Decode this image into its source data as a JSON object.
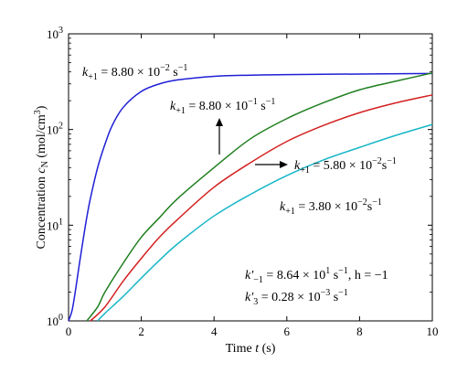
{
  "chart_data": {
    "type": "line",
    "title": "",
    "xlabel": "Time t (s)",
    "ylabel": "Concentration c_N (mol/cm^3)",
    "x_scale": "linear",
    "y_scale": "log",
    "xlim": [
      0,
      10
    ],
    "ylim": [
      1,
      1000
    ],
    "x_ticks": [
      0,
      2,
      4,
      6,
      8,
      10
    ],
    "y_ticks": [
      1,
      10,
      100,
      1000
    ],
    "grid": false,
    "legend": "none",
    "series": [
      {
        "color": "#1f1fd6",
        "x": [
          0,
          0.1,
          0.2,
          0.3,
          0.4,
          0.5,
          0.6,
          0.8,
          1.0,
          1.2,
          1.5,
          2.0,
          2.5,
          3.0,
          4.0,
          5.0,
          6.0,
          8.0,
          10.0
        ],
        "y": [
          1,
          1.3,
          2.2,
          4,
          7,
          12,
          19,
          40,
          70,
          110,
          170,
          250,
          300,
          330,
          360,
          370,
          375,
          380,
          385
        ]
      },
      {
        "color": "#1f7f1f",
        "x": [
          0.5,
          0.8,
          1.0,
          1.5,
          2.0,
          2.5,
          3.0,
          4.0,
          5.0,
          6.0,
          7.0,
          8.0,
          9.0,
          10.0
        ],
        "y": [
          1,
          1.4,
          2,
          4,
          7.5,
          12,
          19,
          40,
          80,
          130,
          190,
          260,
          320,
          390
        ]
      },
      {
        "color": "#d42020",
        "x": [
          0.6,
          1.0,
          1.5,
          2.0,
          2.5,
          3.0,
          4.0,
          5.0,
          6.0,
          7.0,
          8.0,
          9.0,
          10.0
        ],
        "y": [
          1,
          1.4,
          2.6,
          4.5,
          7.5,
          11.5,
          25,
          45,
          75,
          110,
          150,
          190,
          230
        ]
      },
      {
        "color": "#17b7c7",
        "x": [
          0.8,
          1.0,
          1.5,
          2.0,
          2.5,
          3.0,
          4.0,
          5.0,
          6.0,
          7.0,
          8.0,
          9.0,
          10.0
        ],
        "y": [
          1,
          1.2,
          1.8,
          2.8,
          4.3,
          6.4,
          12.5,
          21,
          33,
          48,
          65,
          87,
          113
        ]
      }
    ],
    "annotations": {
      "k1": {
        "main": "k",
        "sub": "+1",
        "eq": " = 8.80 × 10",
        "sup": "−2",
        "unit": " s",
        "unit_sup": "−1"
      },
      "k2": {
        "main": "k",
        "sub": "+1",
        "eq": " = 8.80 × 10",
        "sup": "−1",
        "unit": " s",
        "unit_sup": "−1"
      },
      "k3": {
        "main": "k",
        "sub": "+1",
        "eq": " = 5.80 × 10",
        "sup": "−2",
        "unit": "s",
        "unit_sup": "−1"
      },
      "k4": {
        "main": "k",
        "sub": "+1",
        "eq": " = 3.80 × 10",
        "sup": "−2",
        "unit": "s",
        "unit_sup": "−1"
      },
      "p1": {
        "main": "k′",
        "sub": "−1",
        "eq": " = 8.64 × 10",
        "sup": "1",
        "unit": " s",
        "unit_sup": "−1",
        "tail": ", h = −1"
      },
      "p2": {
        "main": "k′",
        "sub": "3",
        "eq": " = 0.28 × 10",
        "sup": "−3",
        "unit": " s",
        "unit_sup": "−1"
      }
    }
  }
}
